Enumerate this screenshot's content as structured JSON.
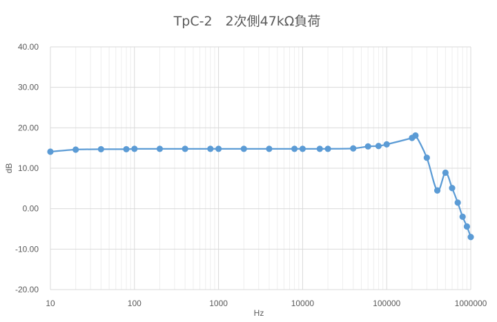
{
  "chart_data": {
    "type": "scatter",
    "title": "TpC-2　2次側47kΩ負荷",
    "xlabel": "Hz",
    "ylabel": "dB",
    "xscale": "log",
    "xlim": [
      10,
      1000000
    ],
    "ylim": [
      -20,
      40
    ],
    "x_tick_labels": [
      "10",
      "100",
      "1000",
      "10000",
      "100000",
      "1000000"
    ],
    "y_tick_labels": [
      "-20.00",
      "-10.00",
      "0.00",
      "10.00",
      "20.00",
      "30.00",
      "40.00"
    ],
    "grid": "horizontal major and logarithmic vertical gridlines",
    "legend": "none",
    "series_color": "#5b9bd5",
    "series": [
      {
        "x": [
          10,
          20,
          40,
          80,
          100,
          200,
          400,
          800,
          1000,
          2000,
          4000,
          8000,
          10000,
          16000,
          20000,
          40000,
          60000,
          80000,
          100000,
          200000,
          220000,
          300000,
          400000,
          500000,
          600000,
          700000,
          800000,
          900000,
          1000000
        ],
        "y": [
          14.1,
          14.6,
          14.7,
          14.7,
          14.8,
          14.8,
          14.8,
          14.8,
          14.8,
          14.8,
          14.8,
          14.8,
          14.8,
          14.8,
          14.8,
          14.9,
          15.4,
          15.5,
          15.9,
          17.5,
          18.1,
          12.6,
          4.5,
          8.9,
          5.1,
          1.5,
          -2.0,
          -4.4,
          -7.0
        ]
      }
    ]
  }
}
